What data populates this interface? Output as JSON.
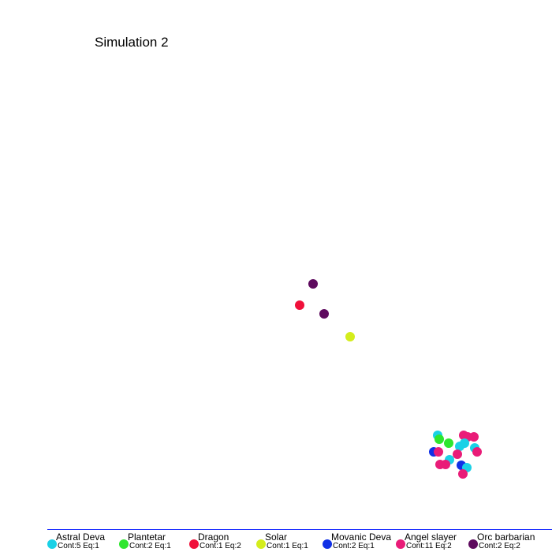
{
  "title": "Simulation 2",
  "legend": [
    {
      "name": "Astral Deva",
      "stats": "Cont:5 Eq:1",
      "color": "#1ad1e6"
    },
    {
      "name": "Plantetar",
      "stats": "Cont:2 Eq:1",
      "color": "#2ee62e"
    },
    {
      "name": "Dragon",
      "stats": "Cont:1 Eq:2",
      "color": "#f0103a"
    },
    {
      "name": "Solar",
      "stats": "Cont:1 Eq:1",
      "color": "#d4ed1c"
    },
    {
      "name": "Movanic Deva",
      "stats": "Cont:2 Eq:1",
      "color": "#1030e6"
    },
    {
      "name": "Angel slayer",
      "stats": "Cont:11 Eq:2",
      "color": "#e91c78"
    },
    {
      "name": "Orc barbarian",
      "stats": "Cont:2 Eq:2",
      "color": "#5e0a5e"
    }
  ]
}
